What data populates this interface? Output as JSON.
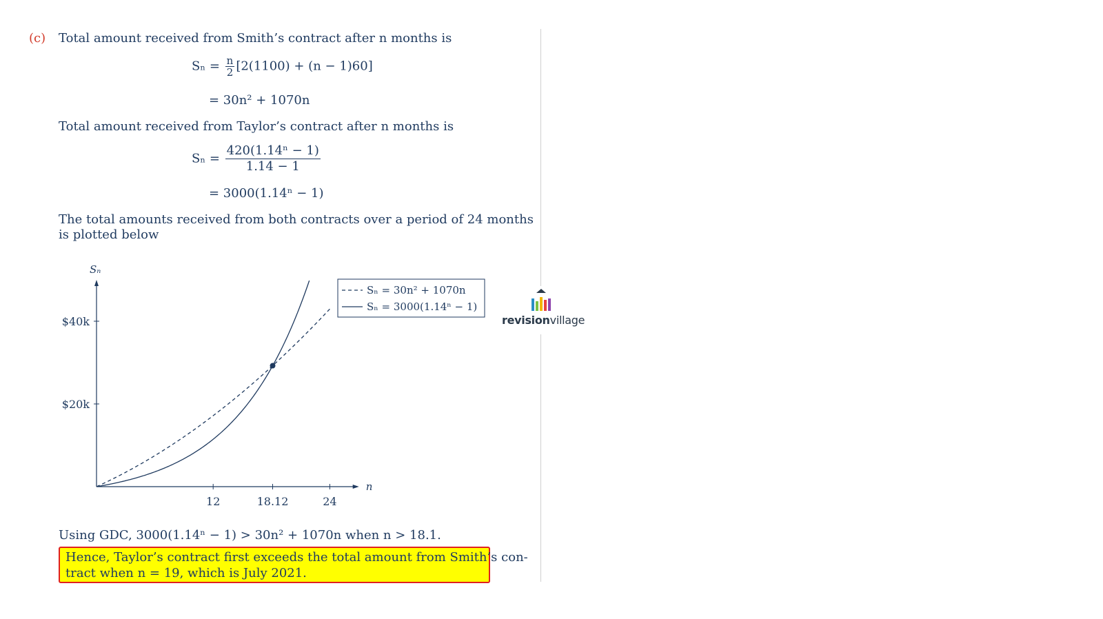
{
  "part_label": "(c)",
  "smith_intro": "Total amount received from Smith’s contract after n months is",
  "smith_eq1_lhs": "Sₙ =",
  "smith_eq1_frac_num": "n",
  "smith_eq1_frac_den": "2",
  "smith_eq1_rest": "[2(1100) + (n − 1)60]",
  "smith_eq2": "= 30n² + 1070n",
  "taylor_intro": "Total amount received from Taylor’s contract after n months is",
  "taylor_eq1_lhs": "Sₙ =",
  "taylor_eq1_num": "420(1.14ⁿ − 1)",
  "taylor_eq1_den": "1.14 − 1",
  "taylor_eq2": "= 3000(1.14ⁿ − 1)",
  "plot_intro_line1": "The total amounts received from both contracts over a period of 24 months",
  "plot_intro_line2": "is plotted below",
  "chart_data": {
    "type": "line",
    "ylabel": "Sₙ",
    "xlabel": "n",
    "xlim": [
      0,
      27
    ],
    "ylim": [
      0,
      50000
    ],
    "x_ticks": [
      12,
      18.12,
      24
    ],
    "x_tick_labels": [
      "12",
      "18.12",
      "24"
    ],
    "y_ticks": [
      20000,
      40000
    ],
    "y_tick_labels": [
      "$20k",
      "$40k"
    ],
    "legend_position": "top-right",
    "series": [
      {
        "name": "Sₙ = 30n² + 1070n",
        "style": "dashed",
        "formula": "30n^2+1070n",
        "x_range": [
          0,
          24
        ]
      },
      {
        "name": "Sₙ = 3000(1.14ⁿ − 1)",
        "style": "solid",
        "formula": "3000(1.14^n-1)",
        "x_range": [
          0,
          22
        ]
      }
    ],
    "intersection": {
      "x": 18.12,
      "y": 29240
    },
    "color": "#1f3a5f"
  },
  "gdc_line": "Using GDC, 3000(1.14ⁿ − 1) > 30n² + 1070n when n > 18.1.",
  "conclusion_line1": "Hence, Taylor’s contract first exceeds the total amount from Smith’s con-",
  "conclusion_line2": "tract when n = 19, which is July 2021.",
  "logo": {
    "bold": "revision",
    "regular": "village"
  }
}
